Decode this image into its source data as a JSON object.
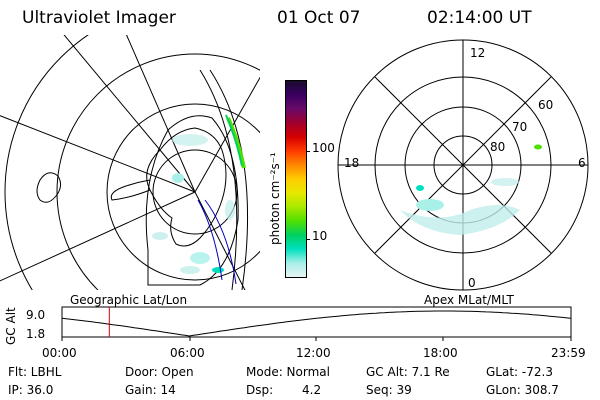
{
  "header": {
    "title": "Ultraviolet Imager",
    "date": "01 Oct 07",
    "time": "02:14:00 UT"
  },
  "colorbar": {
    "unit_label": "photon cm⁻²s⁻¹",
    "ticks": [
      "100",
      "10"
    ],
    "colors": [
      "#1a0b2e",
      "#3a0060",
      "#6a0a6a",
      "#a0002c",
      "#d40000",
      "#ff3a00",
      "#ff8800",
      "#ffcc00",
      "#e8e800",
      "#a8e800",
      "#50e000",
      "#00d060",
      "#00e0c0",
      "#a8f0e8",
      "#e6f4f4"
    ]
  },
  "geo_panel": {
    "caption": "Geographic Lat/Lon"
  },
  "mag_panel": {
    "caption": "Apex MLat/MLT",
    "mlt_labels": {
      "top": "12",
      "left": "18",
      "right": "6",
      "bottom": "0"
    },
    "lat_labels": [
      "60",
      "70",
      "80"
    ]
  },
  "orbit_plot": {
    "ylabel": "GC Alt",
    "ytick_top": "9.0",
    "ytick_bottom": "1.8",
    "xticks": [
      "00:00",
      "06:00",
      "12:00",
      "18:00",
      "23:59"
    ],
    "marker_time_hours": 2.23
  },
  "info": {
    "flt": "Flt: LBHL",
    "ip": "IP: 36.0",
    "door": "Door: Open",
    "gain": "Gain: 14",
    "mode": "Mode: Normal",
    "dsp_label": "Dsp:",
    "dsp_value": "4.2",
    "gc_alt": "GC Alt: 7.1 Re",
    "seq": "Seq: 39",
    "glat": "GLat: -72.3",
    "glon": "GLon: 308.7"
  }
}
